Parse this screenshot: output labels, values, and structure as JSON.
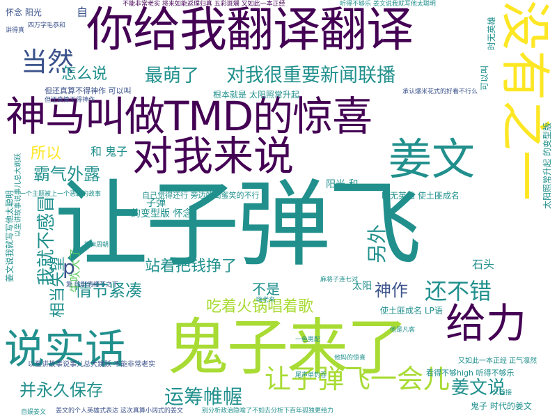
{
  "palette": {
    "purple": "#440154",
    "indigo": "#3b528b",
    "teal": "#21908d",
    "green": "#5dc963",
    "yellow": "#fde725",
    "lime": "#a8db34",
    "blue": "#31688e",
    "darkgreen": "#22a884"
  },
  "words": [
    {
      "text": "让子弹飞",
      "color": "teal"
    },
    {
      "text": "鬼子来了",
      "color": "lime"
    },
    {
      "text": "你给我翻译翻译",
      "color": "purple"
    },
    {
      "text": "神马叫做TMD的惊喜",
      "color": "purple"
    },
    {
      "text": "对我来说",
      "color": "purple"
    },
    {
      "text": "没有之一",
      "color": "yellow"
    },
    {
      "text": "姜文",
      "color": "teal"
    },
    {
      "text": "说实话",
      "color": "teal"
    },
    {
      "text": "给力",
      "color": "purple"
    },
    {
      "text": "当然",
      "color": "indigo"
    },
    {
      "text": "怎么说",
      "color": "teal"
    },
    {
      "text": "最萌了",
      "color": "teal"
    },
    {
      "text": "对我很重要新闻联播",
      "color": "teal"
    },
    {
      "text": "所以",
      "color": "yellow"
    },
    {
      "text": "霸气外露",
      "color": "teal"
    },
    {
      "text": "我就不感冒",
      "color": "teal"
    },
    {
      "text": "情节紧凑",
      "color": "teal"
    },
    {
      "text": "吃着火锅唱着歌",
      "color": "lime"
    },
    {
      "text": "神作",
      "color": "indigo"
    },
    {
      "text": "还不错",
      "color": "teal"
    },
    {
      "text": "另外",
      "color": "teal"
    },
    {
      "text": "让子弹飞一会儿",
      "color": "lime"
    },
    {
      "text": "并永久保存",
      "color": "teal"
    },
    {
      "text": "运筹帷幄",
      "color": "teal"
    },
    {
      "text": "姜文说",
      "color": "teal"
    },
    {
      "text": "站着把钱挣了",
      "color": "teal"
    },
    {
      "text": "相当失望",
      "color": "teal"
    },
    {
      "text": "牛吹大了",
      "color": "green"
    },
    {
      "text": "不是",
      "color": "teal"
    },
    {
      "text": "石头",
      "color": "teal"
    },
    {
      "text": "太阳",
      "color": "teal"
    },
    {
      "text": "阳光 和",
      "color": "teal"
    },
    {
      "text": "和 鬼子",
      "color": "teal"
    },
    {
      "text": "子弹",
      "color": "teal"
    },
    {
      "text": "的变型版 怀念",
      "color": "teal"
    },
    {
      "text": "p",
      "color": "indigo"
    },
    {
      "text": "自",
      "color": "indigo"
    },
    {
      "text": "怀念 阳光",
      "color": "indigo"
    },
    {
      "text": "时无英雄",
      "color": "teal"
    },
    {
      "text": "可以叫",
      "color": "teal"
    },
    {
      "text": "太阳照常升起 的变型版",
      "color": "teal"
    },
    {
      "text": "姜文说我就写写他太聪明",
      "color": "teal"
    },
    {
      "text": "以至讲故事说事儿总大跳跃",
      "color": "teal"
    },
    {
      "text": "不能非常老实 将来如能返璞归真 五彩斑斓 又如此一本正经",
      "color": "purple"
    },
    {
      "text": "听得不够乐 姜文说我就写他太聪明",
      "color": "teal"
    },
    {
      "text": "根本就是 太阳照常升起",
      "color": "teal"
    },
    {
      "text": "但还真算不得神作 可以叫",
      "color": "indigo"
    },
    {
      "text": "自己觉得还行 旁边的闺蜜笑的不行",
      "color": "teal"
    },
    {
      "text": "时无英雄 使土匪成名",
      "color": "teal"
    },
    {
      "text": "使土匪成名 LP语",
      "color": "teal"
    },
    {
      "text": "又如此一本正经 正气凛然",
      "color": "teal"
    },
    {
      "text": "看得不够high 听得不够乐",
      "color": "teal"
    },
    {
      "text": "鬼子 时代的姜文",
      "color": "teal"
    },
    {
      "text": "以至讲故事说事儿总大跳跃 不能非常老实",
      "color": "indigo"
    },
    {
      "text": "姜文的个人英雄式表达 这次真算小阔式的姜文",
      "color": "indigo"
    },
    {
      "text": "别分析政治隐喻了不如去分析下百年孤独更给力",
      "color": "teal"
    },
    {
      "text": "四万字毛恭和",
      "color": "indigo"
    },
    {
      "text": "花旗周朝",
      "color": "teal"
    },
    {
      "text": "复 的剧情细节之下",
      "color": "indigo"
    },
    {
      "text": "尾声单钓吞",
      "color": "teal"
    },
    {
      "text": "嗨老来",
      "color": "teal"
    },
    {
      "text": "麻将子连七对",
      "color": "teal"
    },
    {
      "text": "他是凡客",
      "color": "teal"
    },
    {
      "text": "一色男配",
      "color": "teal"
    },
    {
      "text": "又首接",
      "color": "teal"
    },
    {
      "text": "他妈的惊喜",
      "color": "teal"
    },
    {
      "text": "自娱姜文",
      "color": "teal"
    },
    {
      "text": "一个主题被上一个恶霸的故事",
      "color": "teal"
    },
    {
      "text": "讲得真",
      "color": "indigo"
    },
    {
      "text": "但还真算不得神作",
      "color": "indigo"
    },
    {
      "text": "承认爆米花式的好看不行么",
      "color": "indigo"
    }
  ]
}
